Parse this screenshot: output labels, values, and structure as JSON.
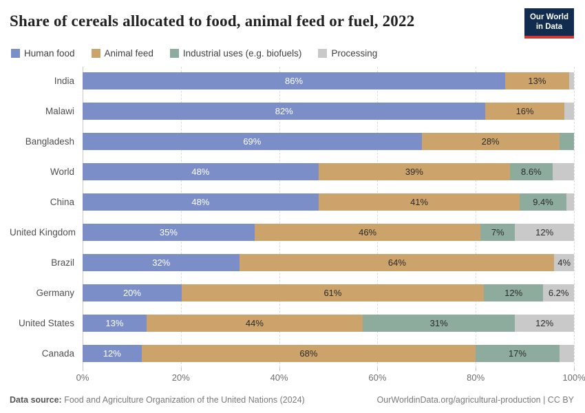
{
  "header": {
    "title": "Share of cereals allocated to food, animal feed or fuel, 2022",
    "logo_line1": "Our World",
    "logo_line2": "in Data"
  },
  "colors": {
    "human_food": "#7C8EC8",
    "animal_feed": "#CBA36B",
    "industrial_uses": "#8EAC9D",
    "processing": "#C9C9C9",
    "logo_navy": "#112C4E",
    "logo_red": "#D13832"
  },
  "chart_data": {
    "type": "bar",
    "orientation": "horizontal",
    "stacked": true,
    "title": "Share of cereals allocated to food, animal feed or fuel, 2022",
    "categories": [
      "India",
      "Malawi",
      "Bangladesh",
      "World",
      "China",
      "United Kingdom",
      "Brazil",
      "Germany",
      "United States",
      "Canada"
    ],
    "series": [
      {
        "name": "Human food",
        "color": "#7C8EC8",
        "label_color": "#ffffff",
        "values": [
          86,
          82,
          69,
          48,
          48,
          35,
          32,
          20,
          13,
          12
        ],
        "labels": [
          "86%",
          "82%",
          "69%",
          "48%",
          "48%",
          "35%",
          "32%",
          "20%",
          "13%",
          "12%"
        ]
      },
      {
        "name": "Animal feed",
        "color": "#CBA36B",
        "label_color": "#2b2b2b",
        "values": [
          13,
          16,
          28,
          39,
          41,
          46,
          64,
          61,
          44,
          68
        ],
        "labels": [
          "13%",
          "16%",
          "28%",
          "39%",
          "41%",
          "46%",
          "64%",
          "61%",
          "44%",
          "68%"
        ]
      },
      {
        "name": "Industrial uses (e.g. biofuels)",
        "color": "#8EAC9D",
        "label_color": "#2b2b2b",
        "values": [
          0,
          0,
          3,
          8.6,
          9.4,
          7,
          0,
          12,
          31,
          17
        ],
        "labels": [
          "",
          "",
          "",
          "8.6%",
          "9.4%",
          "7%",
          "",
          "12%",
          "31%",
          "17%"
        ]
      },
      {
        "name": "Processing",
        "color": "#C9C9C9",
        "label_color": "#2b2b2b",
        "values": [
          1,
          2,
          0,
          4.4,
          1.6,
          12,
          4,
          6.2,
          12,
          3
        ],
        "labels": [
          "",
          "",
          "",
          "",
          "",
          "12%",
          "4%",
          "6.2%",
          "12%",
          ""
        ]
      }
    ],
    "x_ticks": [
      {
        "value": 0,
        "label": "0%"
      },
      {
        "value": 20,
        "label": "20%"
      },
      {
        "value": 40,
        "label": "40%"
      },
      {
        "value": 60,
        "label": "60%"
      },
      {
        "value": 80,
        "label": "80%"
      },
      {
        "value": 100,
        "label": "100%"
      }
    ],
    "xlim": [
      0,
      100
    ],
    "grid": "dashed-vertical",
    "legend_position": "top"
  },
  "footer": {
    "source_bold": "Data source:",
    "source_text": " Food and Agriculture Organization of the United Nations (2024)",
    "credit": "OurWorldinData.org/agricultural-production | CC BY"
  }
}
